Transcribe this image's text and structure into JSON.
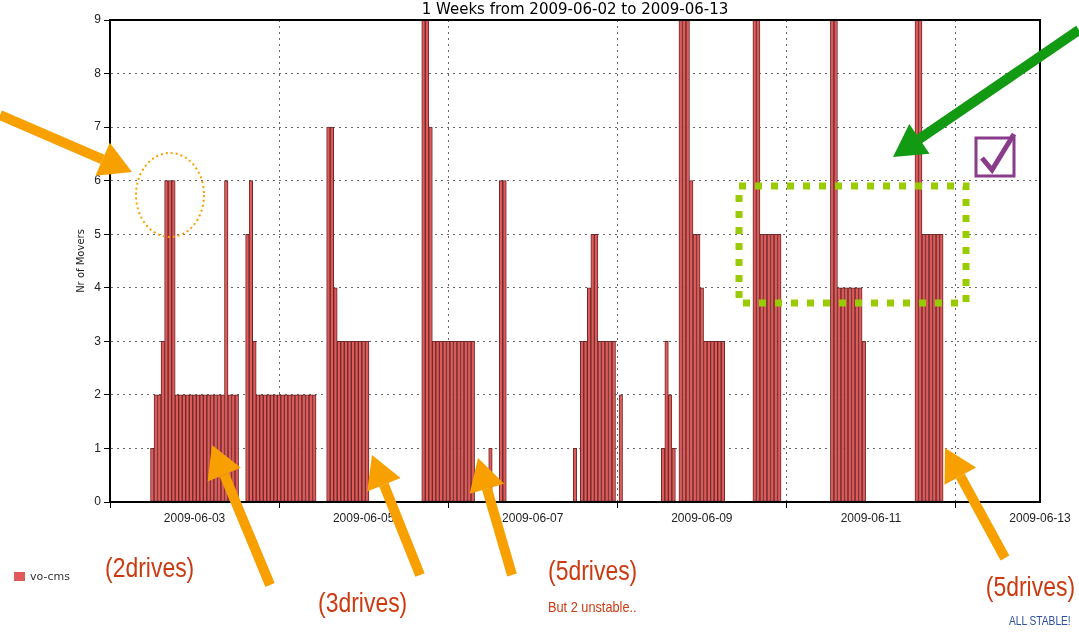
{
  "chart_data": {
    "type": "bar",
    "title": "1 Weeks from 2009-06-02 to 2009-06-13",
    "ylabel": "Nr of Movers",
    "x": [
      "2009-06-02T12:00",
      "2009-06-02T13:00",
      "2009-06-02T14:00",
      "2009-06-02T15:00",
      "2009-06-02T16:00",
      "2009-06-02T17:00",
      "2009-06-02T18:00",
      "2009-06-02T19:00",
      "2009-06-02T20:00",
      "2009-06-02T21:00",
      "2009-06-02T22:00",
      "2009-06-02T23:00",
      "2009-06-03T00:00",
      "2009-06-03T01:00",
      "2009-06-03T02:00",
      "2009-06-03T03:00",
      "2009-06-03T04:00",
      "2009-06-03T05:00",
      "2009-06-03T06:00",
      "2009-06-03T07:00",
      "2009-06-03T08:00",
      "2009-06-03T09:00",
      "2009-06-03T10:00",
      "2009-06-03T11:00",
      "2009-06-03T12:00",
      "2009-06-03T15:00",
      "2009-06-03T16:00",
      "2009-06-03T17:00",
      "2009-06-03T18:00",
      "2009-06-03T19:00",
      "2009-06-03T20:00",
      "2009-06-03T21:00",
      "2009-06-03T22:00",
      "2009-06-03T23:00",
      "2009-06-04T00:00",
      "2009-06-04T01:00",
      "2009-06-04T02:00",
      "2009-06-04T03:00",
      "2009-06-04T04:00",
      "2009-06-04T05:00",
      "2009-06-04T06:00",
      "2009-06-04T07:00",
      "2009-06-04T08:00",
      "2009-06-04T09:00",
      "2009-06-04T10:00",
      "2009-06-04T14:00",
      "2009-06-04T15:00",
      "2009-06-04T16:00",
      "2009-06-04T17:00",
      "2009-06-04T18:00",
      "2009-06-04T19:00",
      "2009-06-04T20:00",
      "2009-06-04T21:00",
      "2009-06-04T22:00",
      "2009-06-04T23:00",
      "2009-06-05T00:00",
      "2009-06-05T01:00",
      "2009-06-05T17:00",
      "2009-06-05T18:00",
      "2009-06-05T19:00",
      "2009-06-05T20:00",
      "2009-06-05T21:00",
      "2009-06-05T22:00",
      "2009-06-05T23:00",
      "2009-06-06T00:00",
      "2009-06-06T01:00",
      "2009-06-06T02:00",
      "2009-06-06T03:00",
      "2009-06-06T04:00",
      "2009-06-06T05:00",
      "2009-06-06T06:00",
      "2009-06-06T07:00",
      "2009-06-06T12:00",
      "2009-06-06T15:00",
      "2009-06-06T16:00",
      "2009-06-07T12:00",
      "2009-06-07T14:00",
      "2009-06-07T15:00",
      "2009-06-07T16:00",
      "2009-06-07T17:00",
      "2009-06-07T18:00",
      "2009-06-07T19:00",
      "2009-06-07T20:00",
      "2009-06-07T21:00",
      "2009-06-07T22:00",
      "2009-06-07T23:00",
      "2009-06-08T01:00",
      "2009-06-08T13:00",
      "2009-06-08T14:00",
      "2009-06-08T15:00",
      "2009-06-08T16:00",
      "2009-06-08T18:00",
      "2009-06-08T19:00",
      "2009-06-08T20:00",
      "2009-06-08T21:00",
      "2009-06-08T22:00",
      "2009-06-08T23:00",
      "2009-06-09T00:00",
      "2009-06-09T01:00",
      "2009-06-09T02:00",
      "2009-06-09T03:00",
      "2009-06-09T04:00",
      "2009-06-09T05:00",
      "2009-06-09T06:00",
      "2009-06-09T15:00",
      "2009-06-09T16:00",
      "2009-06-09T17:00",
      "2009-06-09T18:00",
      "2009-06-09T19:00",
      "2009-06-09T20:00",
      "2009-06-09T21:00",
      "2009-06-09T22:00",
      "2009-06-10T13:00",
      "2009-06-10T14:00",
      "2009-06-10T15:00",
      "2009-06-10T16:00",
      "2009-06-10T17:00",
      "2009-06-10T18:00",
      "2009-06-10T19:00",
      "2009-06-10T20:00",
      "2009-06-10T21:00",
      "2009-06-10T22:00",
      "2009-06-11T13:00",
      "2009-06-11T14:00",
      "2009-06-11T15:00",
      "2009-06-11T16:00",
      "2009-06-11T17:00",
      "2009-06-11T18:00",
      "2009-06-11T19:00",
      "2009-06-11T20:00"
    ],
    "series": [
      {
        "name": "vo-cms",
        "color": "#e05a5a",
        "values": [
          1,
          2,
          2,
          3,
          6,
          6,
          6,
          2,
          2,
          2,
          2,
          2,
          2,
          2,
          2,
          2,
          2,
          2,
          2,
          2,
          2,
          6,
          2,
          2,
          2,
          5,
          6,
          3,
          2,
          2,
          2,
          2,
          2,
          2,
          2,
          2,
          2,
          2,
          2,
          2,
          2,
          2,
          2,
          2,
          2,
          7,
          7,
          4,
          3,
          3,
          3,
          3,
          3,
          3,
          3,
          3,
          3,
          9,
          9,
          7,
          3,
          3,
          3,
          3,
          3,
          3,
          3,
          3,
          3,
          3,
          3,
          3,
          1,
          6,
          6,
          1,
          3,
          3,
          4,
          5,
          5,
          3,
          3,
          3,
          3,
          3,
          2,
          1,
          3,
          2,
          1,
          9,
          9,
          9,
          6,
          5,
          5,
          4,
          3,
          3,
          3,
          3,
          3,
          3,
          9,
          9,
          5,
          5,
          5,
          5,
          5,
          5,
          9,
          9,
          4,
          4,
          4,
          4,
          4,
          4,
          4,
          3,
          9,
          9,
          5,
          5,
          5,
          5,
          5,
          5
        ]
      }
    ],
    "xlim": [
      "2009-06-02",
      "2009-06-13"
    ],
    "xticks": [
      "2009-06-03",
      "2009-06-05",
      "2009-06-07",
      "2009-06-09",
      "2009-06-11",
      "2009-06-13"
    ],
    "ylim": [
      0,
      9
    ],
    "yticks": [
      0,
      1,
      2,
      3,
      4,
      5,
      6,
      7,
      8,
      9
    ],
    "grid": true,
    "legend": "bottom left",
    "annotations": [
      "(2drives)",
      "(3drives)",
      "(5drives)",
      "But 2 unstable..",
      "(5drives)",
      "ALL STABLE!"
    ]
  }
}
